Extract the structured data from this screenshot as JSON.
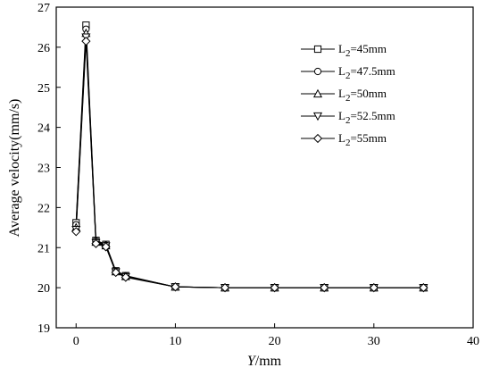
{
  "chart_data": {
    "type": "line",
    "xlabel_italic": "Y",
    "xlabel_unit": "/mm",
    "ylabel": "Average velocity(mm/s)",
    "xlim": [
      -2,
      40
    ],
    "ylim": [
      19,
      27
    ],
    "xticks": [
      0,
      10,
      20,
      30,
      40
    ],
    "yticks": [
      19,
      20,
      21,
      22,
      23,
      24,
      25,
      26,
      27
    ],
    "legend_position": "top-right",
    "grid": false,
    "x": [
      0,
      1,
      2,
      3,
      4,
      5,
      10,
      15,
      20,
      25,
      30,
      35
    ],
    "series": [
      {
        "name_prefix": "L",
        "name_sub": "2",
        "name_suffix": "=45mm",
        "marker": "square",
        "values": [
          21.62,
          26.55,
          21.18,
          21.08,
          20.42,
          20.3,
          20.02,
          20.0,
          20.0,
          20.0,
          20.0,
          20.0
        ]
      },
      {
        "name_prefix": "L",
        "name_sub": "2",
        "name_suffix": "=47.5mm",
        "marker": "circle",
        "values": [
          21.57,
          26.45,
          21.16,
          21.06,
          20.41,
          20.29,
          20.02,
          20.0,
          20.0,
          20.0,
          20.0,
          20.0
        ]
      },
      {
        "name_prefix": "L",
        "name_sub": "2",
        "name_suffix": "=50mm",
        "marker": "triangle-up",
        "values": [
          21.5,
          26.35,
          21.14,
          21.05,
          20.4,
          20.28,
          20.02,
          20.0,
          20.0,
          20.0,
          20.0,
          20.0
        ]
      },
      {
        "name_prefix": "L",
        "name_sub": "2",
        "name_suffix": "=52.5mm",
        "marker": "triangle-down",
        "values": [
          21.45,
          26.25,
          21.12,
          21.04,
          20.39,
          20.27,
          20.02,
          20.0,
          20.0,
          20.0,
          20.0,
          20.0
        ]
      },
      {
        "name_prefix": "L",
        "name_sub": "2",
        "name_suffix": "=55mm",
        "marker": "diamond",
        "values": [
          21.4,
          26.15,
          21.1,
          21.02,
          20.38,
          20.26,
          20.02,
          20.0,
          20.0,
          20.0,
          20.0,
          20.0
        ]
      }
    ]
  }
}
